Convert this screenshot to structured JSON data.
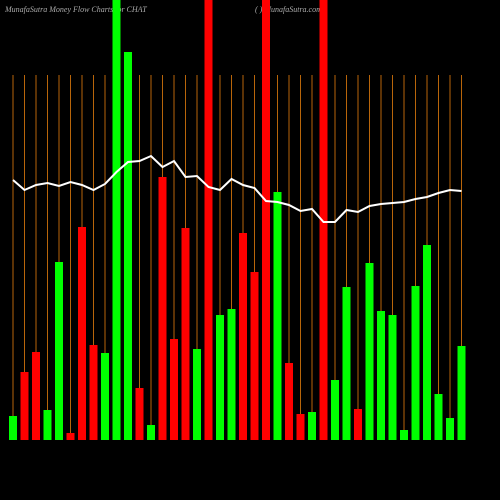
{
  "chart_data": {
    "type": "bar",
    "title": "MunafaSutra  Money Flow  Charts for CHAT",
    "subtitle": "(  ) MunafaSutra.com",
    "categories": [
      null,
      null,
      null,
      null,
      null,
      null,
      null,
      null,
      null,
      null,
      null,
      null,
      null,
      null,
      null,
      null,
      null,
      null,
      null,
      null,
      null,
      null,
      null,
      null,
      null,
      null,
      null,
      null,
      null,
      null,
      null,
      null,
      null,
      null,
      null,
      null,
      null,
      null,
      null,
      null
    ],
    "values": [
      24,
      68,
      88,
      30,
      178,
      7,
      213,
      95,
      87,
      440,
      388,
      52,
      15,
      263,
      101,
      212,
      91,
      440,
      125,
      131,
      207,
      168,
      440,
      248,
      77,
      26,
      28,
      440,
      60,
      153,
      31,
      177,
      129,
      125,
      10,
      154,
      195,
      46,
      22,
      94
    ],
    "bar_colors": [
      "#00ff00",
      "#ff0000",
      "#ff0000",
      "#00ff00",
      "#00ff00",
      "#ff0000",
      "#ff0000",
      "#ff0000",
      "#00ff00",
      "#00ff00",
      "#00ff00",
      "#ff0000",
      "#00ff00",
      "#ff0000",
      "#ff0000",
      "#ff0000",
      "#00ff00",
      "#ff0000",
      "#00ff00",
      "#00ff00",
      "#ff0000",
      "#ff0000",
      "#ff0000",
      "#00ff00",
      "#ff0000",
      "#ff0000",
      "#00ff00",
      "#ff0000",
      "#00ff00",
      "#00ff00",
      "#ff0000",
      "#00ff00",
      "#00ff00",
      "#00ff00",
      "#00ff00",
      "#00ff00",
      "#00ff00",
      "#00ff00",
      "#00ff00",
      "#00ff00"
    ],
    "line": {
      "color": "#ffffff",
      "values": [
        260,
        250,
        255,
        257,
        254,
        258,
        255,
        250,
        256,
        268,
        278,
        279,
        284,
        273,
        279,
        263,
        264,
        253,
        250,
        261,
        255,
        252,
        239,
        238,
        235,
        229,
        231,
        218,
        218,
        230,
        228,
        234,
        236,
        237,
        238,
        241,
        243,
        247,
        250,
        249
      ]
    },
    "ylim": [
      0,
      440
    ],
    "grid_color": "#b8650a"
  }
}
